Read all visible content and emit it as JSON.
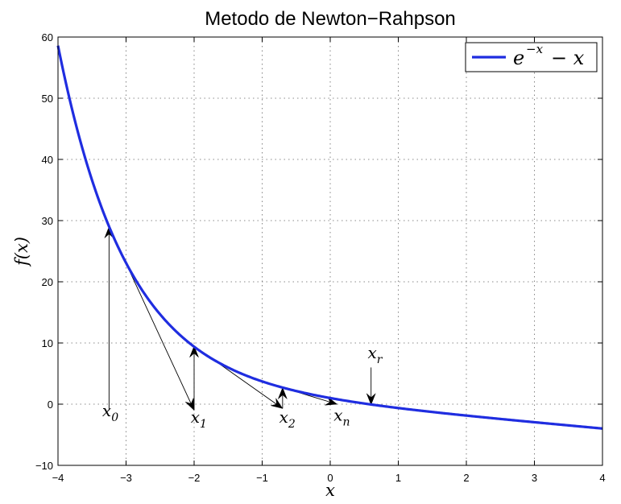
{
  "chart_data": {
    "type": "line",
    "title": "Metodo de Newton−Rahpson",
    "xlabel": "x",
    "ylabel": "f(x)",
    "xlim": [
      -4,
      4
    ],
    "ylim": [
      -10,
      60
    ],
    "xticks": [
      -4,
      -3,
      -2,
      -1,
      0,
      1,
      2,
      3,
      4
    ],
    "xtick_labels": [
      "−4",
      "−3",
      "−2",
      "−1",
      "0",
      "1",
      "2",
      "3",
      "4"
    ],
    "yticks": [
      -10,
      0,
      10,
      20,
      30,
      40,
      50,
      60
    ],
    "ytick_labels": [
      "−10",
      "0",
      "10",
      "20",
      "30",
      "40",
      "50",
      "60"
    ],
    "grid": true,
    "legend_position": "top-right",
    "series": [
      {
        "name": "e^{−x} − x",
        "function": "exp(-x) - x",
        "color": "#1f2de0",
        "x": [
          -4,
          -3.5,
          -3,
          -2.5,
          -2,
          -1.5,
          -1,
          -0.5,
          0,
          0.5,
          1,
          1.5,
          2,
          2.5,
          3,
          3.5,
          4
        ],
        "y": [
          58.6,
          36.6,
          23.09,
          14.68,
          9.39,
          5.98,
          3.72,
          2.15,
          1.0,
          0.11,
          -0.63,
          -1.28,
          -1.86,
          -2.42,
          -2.95,
          -3.47,
          -3.98
        ]
      }
    ],
    "legend": {
      "base": "e",
      "exponent": "−x",
      "tail": "− x"
    },
    "annotations": [
      {
        "id": "x0",
        "label": "x",
        "sub": "0",
        "x": -3.25,
        "y": 29.0,
        "label_x": -3.35,
        "label_y": -2.0
      },
      {
        "id": "x1",
        "label": "x",
        "sub": "1",
        "x": -2.0,
        "y": 9.5,
        "label_x": -2.05,
        "label_y": -3.0
      },
      {
        "id": "x2",
        "label": "x",
        "sub": "2",
        "x": -0.7,
        "y": 2.7,
        "label_x": -0.75,
        "label_y": -3.0
      },
      {
        "id": "xn",
        "label": "x",
        "sub": "n",
        "x": 0.1,
        "y": 0.0,
        "label_x": 0.05,
        "label_y": -2.7
      },
      {
        "id": "xr",
        "label": "x",
        "sub": "r",
        "x": 0.6,
        "y": -0.1,
        "label_x": 0.55,
        "label_y": 7.5
      }
    ]
  }
}
